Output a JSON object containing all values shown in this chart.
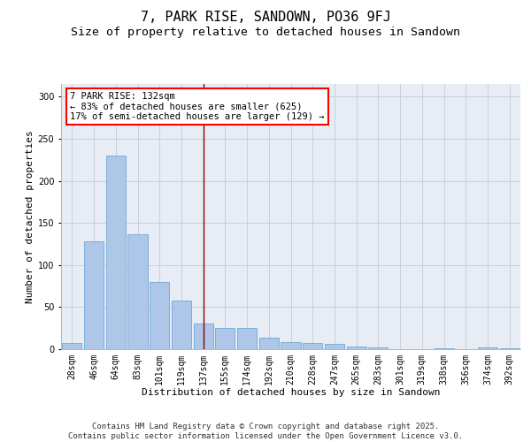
{
  "title1": "7, PARK RISE, SANDOWN, PO36 9FJ",
  "title2": "Size of property relative to detached houses in Sandown",
  "xlabel": "Distribution of detached houses by size in Sandown",
  "ylabel": "Number of detached properties",
  "categories": [
    "28sqm",
    "46sqm",
    "64sqm",
    "83sqm",
    "101sqm",
    "119sqm",
    "137sqm",
    "155sqm",
    "174sqm",
    "192sqm",
    "210sqm",
    "228sqm",
    "247sqm",
    "265sqm",
    "283sqm",
    "301sqm",
    "319sqm",
    "338sqm",
    "356sqm",
    "374sqm",
    "392sqm"
  ],
  "values": [
    7,
    128,
    230,
    136,
    80,
    58,
    30,
    25,
    25,
    14,
    8,
    7,
    6,
    3,
    2,
    0,
    0,
    1,
    0,
    2,
    1
  ],
  "bar_color": "#aec6e8",
  "bar_edge_color": "#5a9fd4",
  "vline_x_index": 6,
  "vline_color": "#8b0000",
  "annotation_line1": "7 PARK RISE: 132sqm",
  "annotation_line2": "← 83% of detached houses are smaller (625)",
  "annotation_line3": "17% of semi-detached houses are larger (129) →",
  "annotation_box_color": "white",
  "annotation_box_edge_color": "red",
  "ylim": [
    0,
    315
  ],
  "yticks": [
    0,
    50,
    100,
    150,
    200,
    250,
    300
  ],
  "grid_color": "#c8d0dc",
  "bg_color": "#e8edf5",
  "footer_text": "Contains HM Land Registry data © Crown copyright and database right 2025.\nContains public sector information licensed under the Open Government Licence v3.0.",
  "title1_fontsize": 11,
  "title2_fontsize": 9.5,
  "xlabel_fontsize": 8,
  "ylabel_fontsize": 8,
  "tick_fontsize": 7,
  "annotation_fontsize": 7.5,
  "footer_fontsize": 6.5
}
